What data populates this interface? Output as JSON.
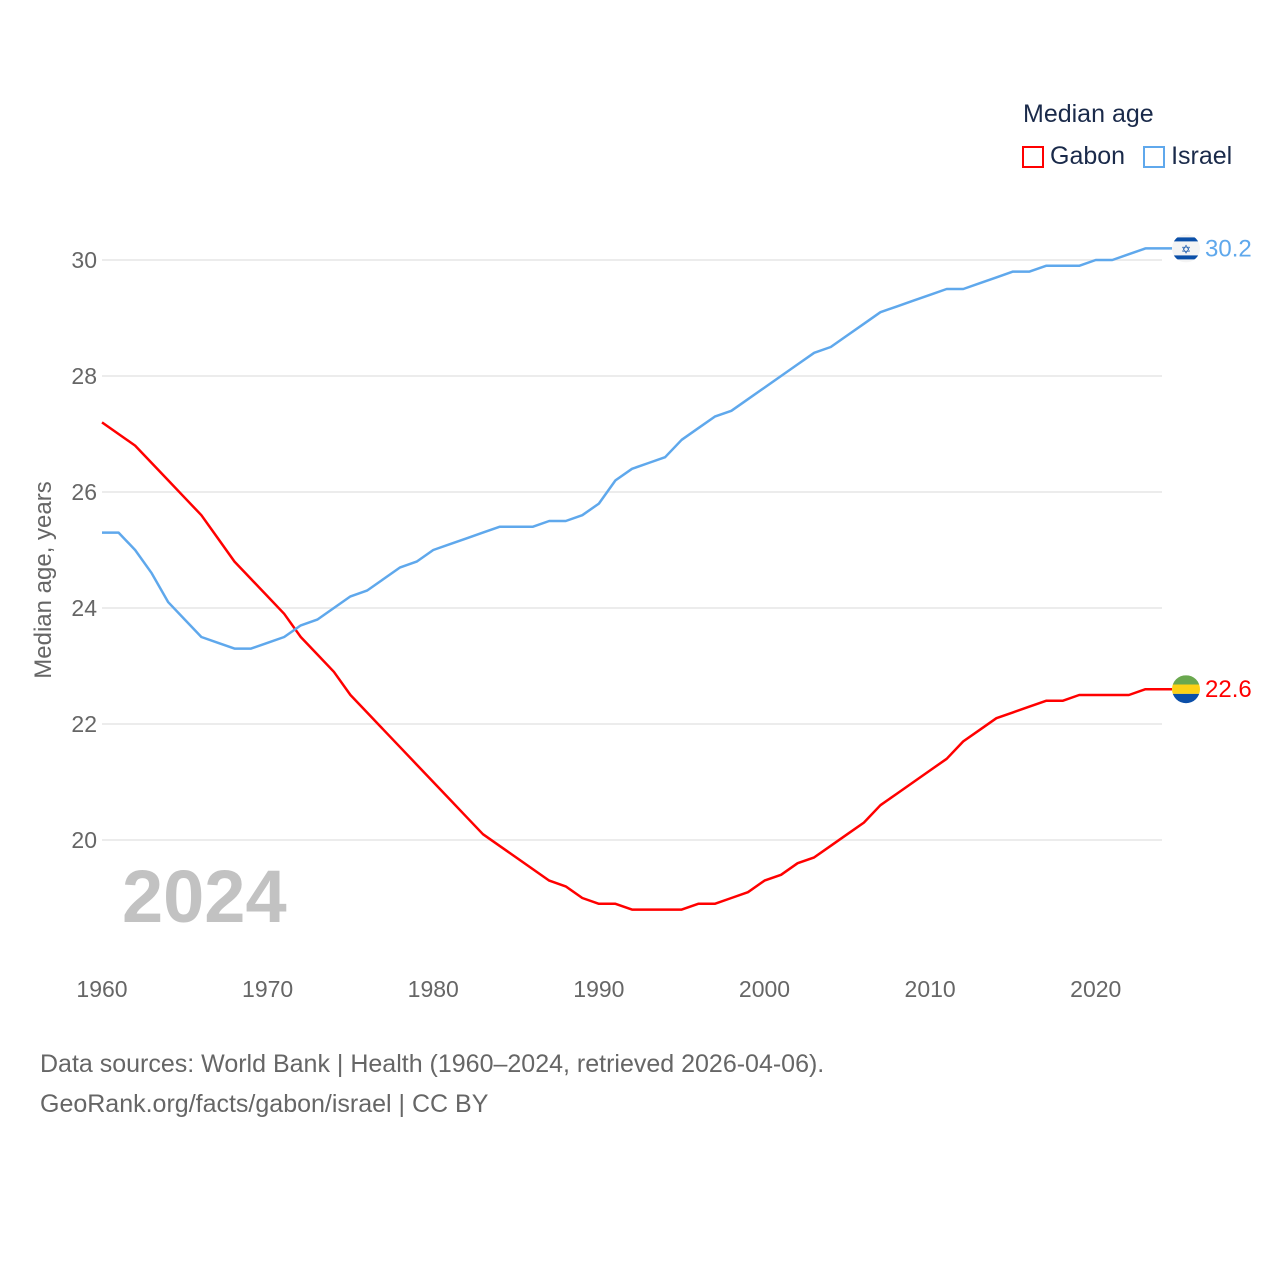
{
  "chart_data": {
    "type": "line",
    "title": "Median age",
    "xlabel": "",
    "ylabel": "Median age, years",
    "xlim": [
      1960,
      2024
    ],
    "ylim": [
      18.5,
      31
    ],
    "x_ticks": [
      1960,
      1970,
      1980,
      1990,
      2000,
      2010,
      2020
    ],
    "y_ticks": [
      20,
      22,
      24,
      26,
      28,
      30
    ],
    "grid": true,
    "legend_position": "top-right",
    "year_watermark": "2024",
    "x": [
      1960,
      1961,
      1962,
      1963,
      1964,
      1965,
      1966,
      1967,
      1968,
      1969,
      1970,
      1971,
      1972,
      1973,
      1974,
      1975,
      1976,
      1977,
      1978,
      1979,
      1980,
      1981,
      1982,
      1983,
      1984,
      1985,
      1986,
      1987,
      1988,
      1989,
      1990,
      1991,
      1992,
      1993,
      1994,
      1995,
      1996,
      1997,
      1998,
      1999,
      2000,
      2001,
      2002,
      2003,
      2004,
      2005,
      2006,
      2007,
      2008,
      2009,
      2010,
      2011,
      2012,
      2013,
      2014,
      2015,
      2016,
      2017,
      2018,
      2019,
      2020,
      2021,
      2022,
      2023,
      2024
    ],
    "series": [
      {
        "name": "Gabon",
        "color": "#ff0000",
        "end_label": "22.6",
        "flag": "gabon-flag",
        "values": [
          27.2,
          27.0,
          26.8,
          26.5,
          26.2,
          25.9,
          25.6,
          25.2,
          24.8,
          24.5,
          24.2,
          23.9,
          23.5,
          23.2,
          22.9,
          22.5,
          22.2,
          21.9,
          21.6,
          21.3,
          21.0,
          20.7,
          20.4,
          20.1,
          19.9,
          19.7,
          19.5,
          19.3,
          19.2,
          19.0,
          18.9,
          18.9,
          18.8,
          18.8,
          18.8,
          18.8,
          18.9,
          18.9,
          19.0,
          19.1,
          19.3,
          19.4,
          19.6,
          19.7,
          19.9,
          20.1,
          20.3,
          20.6,
          20.8,
          21.0,
          21.2,
          21.4,
          21.7,
          21.9,
          22.1,
          22.2,
          22.3,
          22.4,
          22.4,
          22.5,
          22.5,
          22.5,
          22.5,
          22.6,
          22.6
        ]
      },
      {
        "name": "Israel",
        "color": "#5fa8ec",
        "end_label": "30.2",
        "flag": "israel-flag",
        "values": [
          25.3,
          25.3,
          25.0,
          24.6,
          24.1,
          23.8,
          23.5,
          23.4,
          23.3,
          23.3,
          23.4,
          23.5,
          23.7,
          23.8,
          24.0,
          24.2,
          24.3,
          24.5,
          24.7,
          24.8,
          25.0,
          25.1,
          25.2,
          25.3,
          25.4,
          25.4,
          25.4,
          25.5,
          25.5,
          25.6,
          25.8,
          26.2,
          26.4,
          26.5,
          26.6,
          26.9,
          27.1,
          27.3,
          27.4,
          27.6,
          27.8,
          28.0,
          28.2,
          28.4,
          28.5,
          28.7,
          28.9,
          29.1,
          29.2,
          29.3,
          29.4,
          29.5,
          29.5,
          29.6,
          29.7,
          29.8,
          29.8,
          29.9,
          29.9,
          29.9,
          30.0,
          30.0,
          30.1,
          30.2,
          30.2
        ]
      }
    ]
  },
  "footer": {
    "line1": "Data sources: World Bank | Health (1960–2024, retrieved 2026-04-06).",
    "line2": "GeoRank.org/facts/gabon/israel | CC BY"
  }
}
